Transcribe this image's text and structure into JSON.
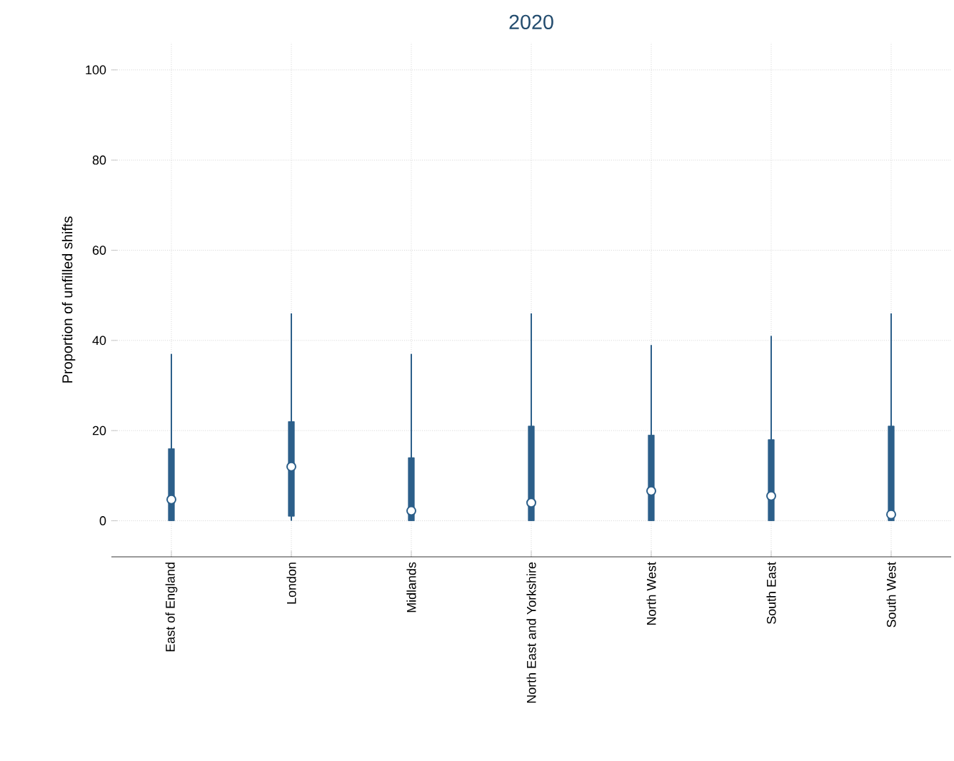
{
  "chart_data": {
    "type": "box",
    "title": "2020",
    "ylabel": "Proportion of unfilled shifts",
    "categories": [
      "East of England",
      "London",
      "Midlands",
      "North East and Yorkshire",
      "North West",
      "South East",
      "South West"
    ],
    "boxes": [
      {
        "low": 0,
        "q1": 0,
        "median": 4.7,
        "q3": 16,
        "high": 37
      },
      {
        "low": 0,
        "q1": 1,
        "median": 12,
        "q3": 22,
        "high": 46
      },
      {
        "low": 0,
        "q1": 0,
        "median": 2.2,
        "q3": 14,
        "high": 37
      },
      {
        "low": 0,
        "q1": 0,
        "median": 4,
        "q3": 21,
        "high": 46
      },
      {
        "low": 0,
        "q1": 0,
        "median": 6.6,
        "q3": 19,
        "high": 39
      },
      {
        "low": 0,
        "q1": 0,
        "median": 5.5,
        "q3": 18,
        "high": 41
      },
      {
        "low": 0,
        "q1": 0,
        "median": 1.4,
        "q3": 21,
        "high": 46
      }
    ],
    "color": "#2c5f8a",
    "ylim": [
      -8,
      106
    ],
    "yticks": [
      0,
      20,
      40,
      60,
      80,
      100
    ],
    "grid": true
  }
}
